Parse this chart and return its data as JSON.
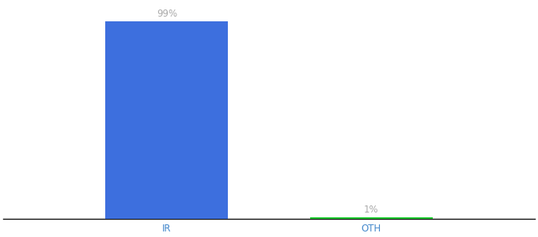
{
  "categories": [
    "IR",
    "OTH"
  ],
  "values": [
    99,
    1
  ],
  "bar_colors": [
    "#3d6fde",
    "#22cc33"
  ],
  "labels": [
    "99%",
    "1%"
  ],
  "label_color": "#aaaaaa",
  "background_color": "#ffffff",
  "ylim": [
    0,
    108
  ],
  "bar_width": 0.6,
  "label_fontsize": 8.5,
  "tick_fontsize": 8.5,
  "xlabel_color": "#4488cc",
  "figsize": [
    6.8,
    3.0
  ],
  "dpi": 100
}
